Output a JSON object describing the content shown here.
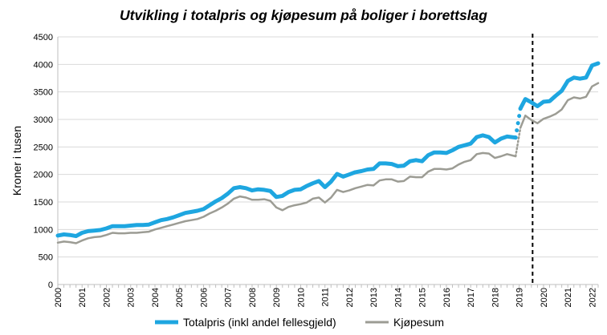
{
  "chart_data": {
    "type": "line",
    "title": "Utvikling i totalpris og kjøpesum på boliger i borettslag",
    "xlabel": "",
    "ylabel": "Kroner i tusen",
    "ylim": [
      0,
      4500
    ],
    "yticks": [
      0,
      500,
      1000,
      1500,
      2000,
      2500,
      3000,
      3500,
      4000,
      4500
    ],
    "xticks": [
      "2000",
      "2001",
      "2002",
      "2003",
      "2004",
      "2005",
      "2006",
      "2007",
      "2008",
      "2009",
      "2010",
      "2011",
      "2012",
      "2013",
      "2014",
      "2015",
      "2016",
      "2017",
      "2018",
      "2019",
      "2020",
      "2021",
      "2022"
    ],
    "grid": true,
    "legend": "bottom",
    "vertical_marker": {
      "x": 2019.55,
      "style": "dashed",
      "color": "#000000"
    },
    "break": {
      "x_start": 2018.85,
      "x_end": 2019.05,
      "style": "dotted"
    },
    "series": [
      {
        "name": "Totalpris (inkl andel fellesgjeld)",
        "color": "#1ea6e0",
        "x": [
          2000.0,
          2000.25,
          2000.5,
          2000.75,
          2001.0,
          2001.25,
          2001.5,
          2001.75,
          2002.0,
          2002.25,
          2002.5,
          2002.75,
          2003.0,
          2003.25,
          2003.5,
          2003.75,
          2004.0,
          2004.25,
          2004.5,
          2004.75,
          2005.0,
          2005.25,
          2005.5,
          2005.75,
          2006.0,
          2006.25,
          2006.5,
          2006.75,
          2007.0,
          2007.25,
          2007.5,
          2007.75,
          2008.0,
          2008.25,
          2008.5,
          2008.75,
          2009.0,
          2009.25,
          2009.5,
          2009.75,
          2010.0,
          2010.25,
          2010.5,
          2010.75,
          2011.0,
          2011.25,
          2011.5,
          2011.75,
          2012.0,
          2012.25,
          2012.5,
          2012.75,
          2013.0,
          2013.25,
          2013.5,
          2013.75,
          2014.0,
          2014.25,
          2014.5,
          2014.75,
          2015.0,
          2015.25,
          2015.5,
          2015.75,
          2016.0,
          2016.25,
          2016.5,
          2016.75,
          2017.0,
          2017.25,
          2017.5,
          2017.75,
          2018.0,
          2018.25,
          2018.5,
          2018.85,
          2019.05,
          2019.25,
          2019.5,
          2019.75,
          2020.0,
          2020.25,
          2020.5,
          2020.75,
          2021.0,
          2021.25,
          2021.5,
          2021.75,
          2022.0,
          2022.25
        ],
        "values": [
          890,
          910,
          900,
          880,
          940,
          970,
          980,
          990,
          1020,
          1060,
          1060,
          1060,
          1070,
          1080,
          1080,
          1090,
          1130,
          1170,
          1190,
          1220,
          1260,
          1300,
          1320,
          1340,
          1370,
          1440,
          1510,
          1570,
          1650,
          1750,
          1770,
          1750,
          1710,
          1730,
          1720,
          1700,
          1590,
          1610,
          1680,
          1720,
          1730,
          1790,
          1840,
          1880,
          1770,
          1870,
          2010,
          1960,
          2000,
          2040,
          2060,
          2090,
          2100,
          2200,
          2200,
          2190,
          2150,
          2160,
          2240,
          2260,
          2240,
          2350,
          2400,
          2400,
          2390,
          2440,
          2500,
          2530,
          2560,
          2680,
          2710,
          2680,
          2580,
          2650,
          2690,
          2670,
          3200,
          3370,
          3310,
          3240,
          3320,
          3330,
          3430,
          3520,
          3700,
          3760,
          3740,
          3760,
          3980,
          4020
        ]
      },
      {
        "name": "Kjøpesum",
        "color": "#9c9c94",
        "x": [
          2000.0,
          2000.25,
          2000.5,
          2000.75,
          2001.0,
          2001.25,
          2001.5,
          2001.75,
          2002.0,
          2002.25,
          2002.5,
          2002.75,
          2003.0,
          2003.25,
          2003.5,
          2003.75,
          2004.0,
          2004.25,
          2004.5,
          2004.75,
          2005.0,
          2005.25,
          2005.5,
          2005.75,
          2006.0,
          2006.25,
          2006.5,
          2006.75,
          2007.0,
          2007.25,
          2007.5,
          2007.75,
          2008.0,
          2008.25,
          2008.5,
          2008.75,
          2009.0,
          2009.25,
          2009.5,
          2009.75,
          2010.0,
          2010.25,
          2010.5,
          2010.75,
          2011.0,
          2011.25,
          2011.5,
          2011.75,
          2012.0,
          2012.25,
          2012.5,
          2012.75,
          2013.0,
          2013.25,
          2013.5,
          2013.75,
          2014.0,
          2014.25,
          2014.5,
          2014.75,
          2015.0,
          2015.25,
          2015.5,
          2015.75,
          2016.0,
          2016.25,
          2016.5,
          2016.75,
          2017.0,
          2017.25,
          2017.5,
          2017.75,
          2018.0,
          2018.25,
          2018.5,
          2018.85,
          2019.05,
          2019.25,
          2019.5,
          2019.75,
          2020.0,
          2020.25,
          2020.5,
          2020.75,
          2021.0,
          2021.25,
          2021.5,
          2021.75,
          2022.0,
          2022.25
        ],
        "values": [
          760,
          780,
          770,
          750,
          800,
          840,
          860,
          870,
          900,
          940,
          930,
          930,
          940,
          940,
          950,
          960,
          1000,
          1030,
          1060,
          1090,
          1120,
          1150,
          1170,
          1190,
          1230,
          1290,
          1340,
          1400,
          1470,
          1560,
          1600,
          1580,
          1540,
          1540,
          1550,
          1520,
          1400,
          1350,
          1410,
          1440,
          1460,
          1490,
          1560,
          1580,
          1490,
          1580,
          1720,
          1680,
          1710,
          1750,
          1780,
          1810,
          1800,
          1890,
          1910,
          1910,
          1870,
          1880,
          1960,
          1950,
          1950,
          2050,
          2100,
          2100,
          2090,
          2110,
          2180,
          2230,
          2260,
          2370,
          2390,
          2380,
          2300,
          2330,
          2370,
          2330,
          2850,
          3070,
          2990,
          2930,
          3010,
          3050,
          3100,
          3180,
          3350,
          3400,
          3380,
          3410,
          3600,
          3660
        ]
      }
    ]
  }
}
